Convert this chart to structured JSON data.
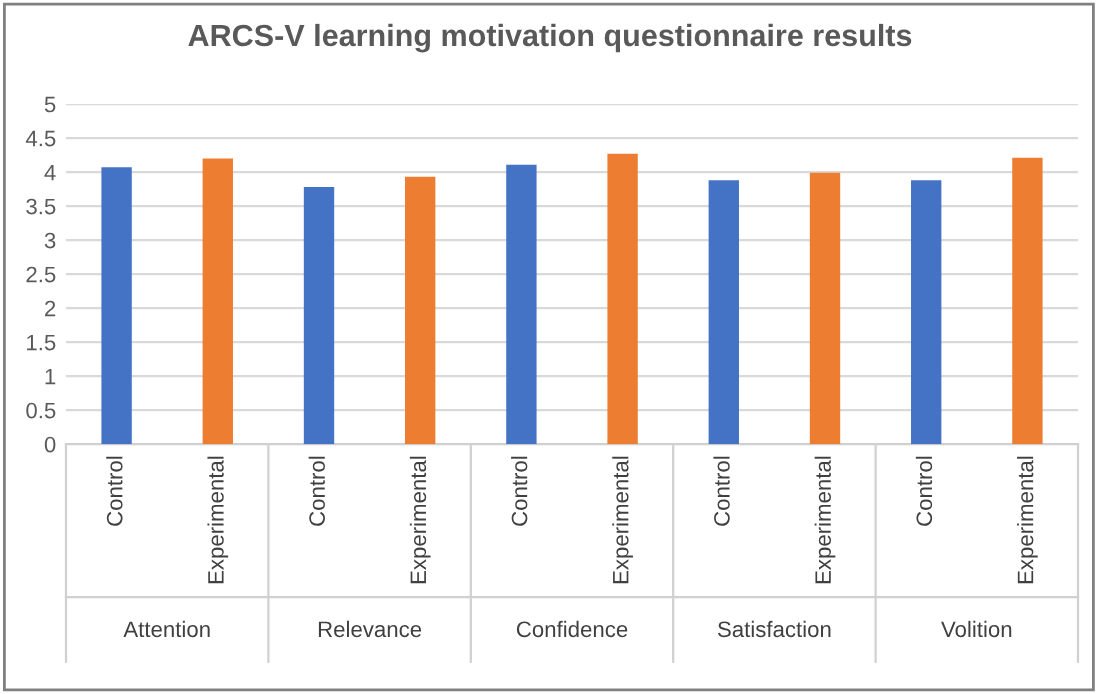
{
  "chart_data": {
    "type": "bar",
    "title": "ARCS-V learning motivation questionnaire results",
    "categories": [
      "Control",
      "Experimental",
      "Control",
      "Experimental",
      "Control",
      "Experimental",
      "Control",
      "Experimental",
      "Control",
      "Experimental"
    ],
    "values": [
      4.07,
      4.2,
      3.78,
      3.93,
      4.11,
      4.27,
      3.88,
      3.99,
      3.88,
      4.21
    ],
    "colors": [
      "#4472c4",
      "#ed7d31",
      "#4472c4",
      "#ed7d31",
      "#4472c4",
      "#ed7d31",
      "#4472c4",
      "#ed7d31",
      "#4472c4",
      "#ed7d31"
    ],
    "annotations": [
      "Attention",
      "Relevance",
      "Confidence",
      "Satisfaction",
      "Volition"
    ],
    "ylim": [
      0,
      5
    ],
    "yticks": [
      0,
      0.5,
      1,
      1.5,
      2,
      2.5,
      3,
      3.5,
      4,
      4.5,
      5
    ],
    "grid": "y",
    "legend": false
  }
}
